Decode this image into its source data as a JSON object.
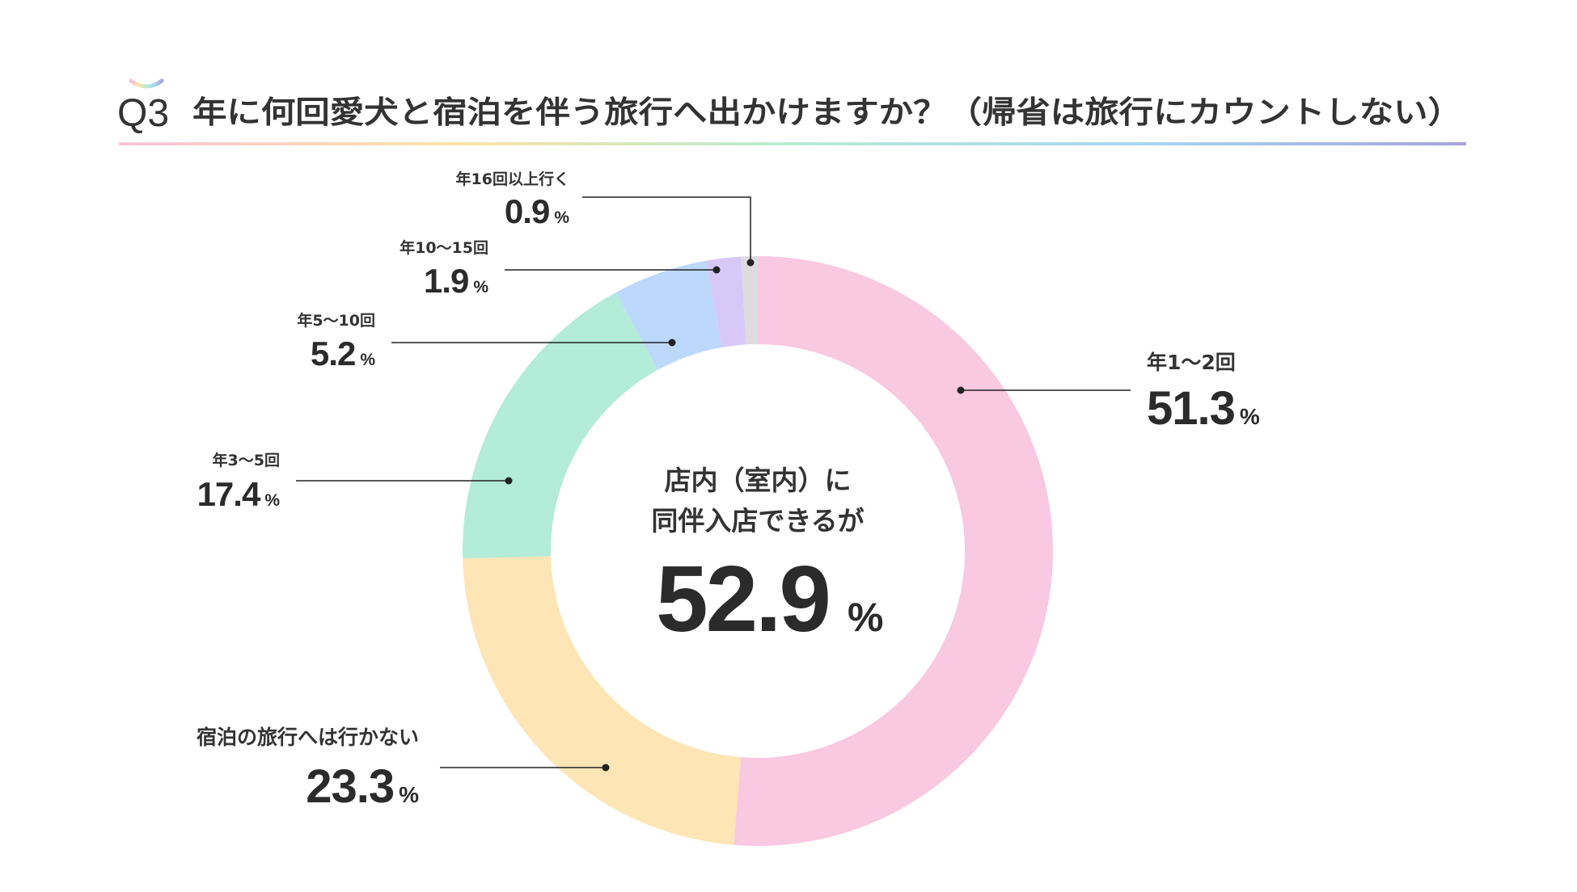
{
  "header": {
    "q_number": "Q3",
    "question": "年に何回愛犬と宿泊を伴う旅行へ出かけますか？（帰省は旅行にカウントしない）"
  },
  "center": {
    "line1": "店内（室内）に",
    "line2": "同伴入店できるが",
    "value": "52.9",
    "unit": "%"
  },
  "chart_data": {
    "type": "pie",
    "style": "donut",
    "unit": "%",
    "slices": [
      {
        "label": "年1〜2回",
        "value": 51.3,
        "display": "51.3",
        "color": "#f9c8e1"
      },
      {
        "label": "宿泊の旅行へは行かない",
        "value": 23.3,
        "display": "23.3",
        "color": "#fde5b6"
      },
      {
        "label": "年3〜5回",
        "value": 17.4,
        "display": "17.4",
        "color": "#b3ecd9"
      },
      {
        "label": "年5〜10回",
        "value": 5.2,
        "display": "5.2",
        "color": "#bcd8fb"
      },
      {
        "label": "年10〜15回",
        "value": 1.9,
        "display": "1.9",
        "color": "#d8c8f8"
      },
      {
        "label": "年16回以上行く",
        "value": 0.9,
        "display": "0.9",
        "color": "#dcdcdc"
      }
    ],
    "header_gradient": [
      "#f7c4dc",
      "#fbe3a6",
      "#b8ecd4",
      "#a8d8f2",
      "#a6a4dc"
    ]
  }
}
